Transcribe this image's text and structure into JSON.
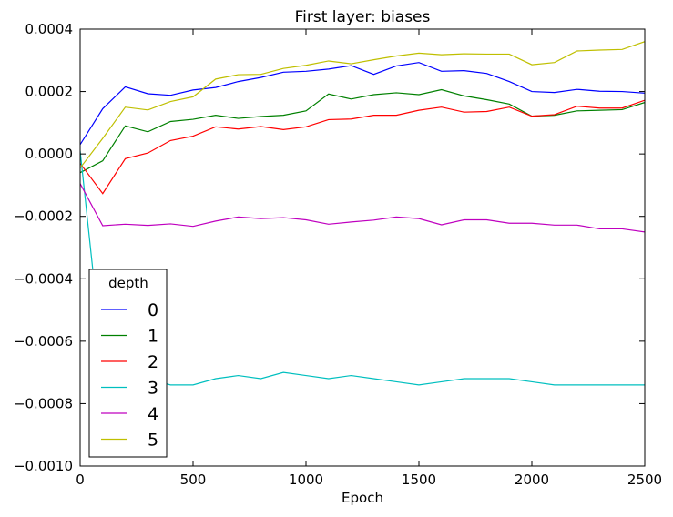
{
  "chart_data": {
    "type": "line",
    "title": "First layer: biases",
    "xlabel": "Epoch",
    "ylabel": "",
    "xlim": [
      0,
      2500
    ],
    "ylim": [
      -0.001,
      0.0004
    ],
    "x_ticks": [
      0,
      500,
      1000,
      1500,
      2000,
      2500
    ],
    "x_tick_labels": [
      "0",
      "500",
      "1000",
      "1500",
      "2000",
      "2500"
    ],
    "y_ticks": [
      -0.001,
      -0.0008,
      -0.0006,
      -0.0004,
      -0.0002,
      0.0,
      0.0002,
      0.0004
    ],
    "y_tick_labels": [
      "−0.0010",
      "−0.0008",
      "−0.0006",
      "−0.0004",
      "−0.0002",
      "0.0000",
      "0.0002",
      "0.0004"
    ],
    "grid": false,
    "legend_title": "depth",
    "legend_position": "bottom-left",
    "x": [
      0,
      100,
      200,
      300,
      400,
      500,
      600,
      700,
      800,
      900,
      1000,
      1100,
      1200,
      1300,
      1400,
      1500,
      1600,
      1700,
      1800,
      1900,
      2000,
      2100,
      2200,
      2300,
      2400,
      2500
    ],
    "series": [
      {
        "name": "0",
        "color": "#0000ff",
        "values": [
          3e-05,
          0.000145,
          0.000215,
          0.000193,
          0.000188,
          0.000205,
          0.000213,
          0.000232,
          0.000245,
          0.000262,
          0.000265,
          0.000272,
          0.000283,
          0.000255,
          0.000282,
          0.000293,
          0.000265,
          0.000267,
          0.000258,
          0.000232,
          0.0002,
          0.000197,
          0.000207,
          0.000201,
          0.0002,
          0.000195
        ]
      },
      {
        "name": "1",
        "color": "#008000",
        "values": [
          -6e-05,
          -2.2e-05,
          9e-05,
          7.1e-05,
          0.000104,
          0.000111,
          0.000124,
          0.000114,
          0.00012,
          0.000124,
          0.000138,
          0.000192,
          0.000176,
          0.00019,
          0.000196,
          0.00019,
          0.000206,
          0.000186,
          0.000174,
          0.00016,
          0.000121,
          0.000124,
          0.000138,
          0.00014,
          0.000142,
          0.000165
        ]
      },
      {
        "name": "2",
        "color": "#ff0000",
        "values": [
          -3e-05,
          -0.000127,
          -1.5e-05,
          3e-06,
          4.3e-05,
          5.7e-05,
          8.7e-05,
          8e-05,
          8.8e-05,
          7.8e-05,
          8.7e-05,
          0.00011,
          0.000112,
          0.000124,
          0.000124,
          0.00014,
          0.00015,
          0.000134,
          0.000136,
          0.00015,
          0.000121,
          0.000126,
          0.000153,
          0.000147,
          0.000147,
          0.000172
        ]
      },
      {
        "name": "3",
        "color": "#00bfbf",
        "values": [
          1e-05,
          -0.00067,
          -0.00071,
          -0.00072,
          -0.00074,
          -0.00074,
          -0.00072,
          -0.00071,
          -0.00072,
          -0.0007,
          -0.00071,
          -0.00072,
          -0.00071,
          -0.00072,
          -0.00073,
          -0.00074,
          -0.00073,
          -0.00072,
          -0.00072,
          -0.00072,
          -0.00073,
          -0.00074,
          -0.00074,
          -0.00074,
          -0.00074,
          -0.00074
        ]
      },
      {
        "name": "4",
        "color": "#bf00bf",
        "values": [
          -9.5e-05,
          -0.00023,
          -0.000225,
          -0.000229,
          -0.000224,
          -0.000232,
          -0.000215,
          -0.000202,
          -0.000207,
          -0.000204,
          -0.000211,
          -0.000225,
          -0.000218,
          -0.000212,
          -0.000202,
          -0.000207,
          -0.000227,
          -0.000211,
          -0.000211,
          -0.000222,
          -0.000222,
          -0.000228,
          -0.000228,
          -0.00024,
          -0.00024,
          -0.00025
        ]
      },
      {
        "name": "5",
        "color": "#bfbf00",
        "values": [
          -4.5e-05,
          5e-05,
          0.00015,
          0.000141,
          0.000168,
          0.000183,
          0.00024,
          0.000254,
          0.000255,
          0.000274,
          0.000284,
          0.000298,
          0.000289,
          0.000302,
          0.000314,
          0.000323,
          0.000318,
          0.000321,
          0.00032,
          0.00032,
          0.000286,
          0.000293,
          0.00033,
          0.000333,
          0.000335,
          0.00036
        ]
      }
    ]
  }
}
